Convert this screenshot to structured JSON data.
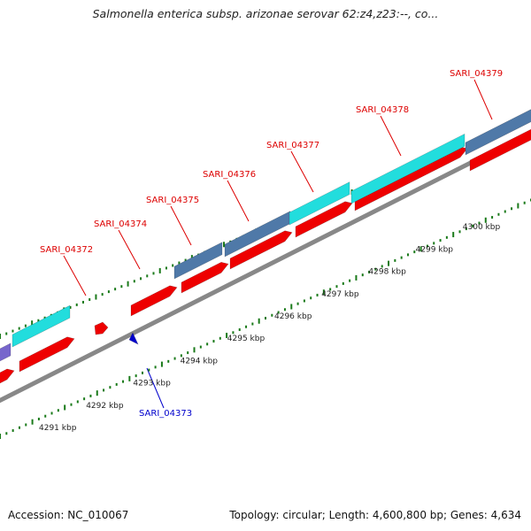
{
  "title": "Salmonella enterica subsp. arizonae serovar 62:z4,z23:--, co...",
  "footer": {
    "accession": "Accession: NC_010067",
    "summary": "Topology: circular; Length: 4,600,800 bp; Genes: 4,634"
  },
  "gene_labels": [
    {
      "text": "SARI_04372",
      "color": "#dd0000"
    },
    {
      "text": "SARI_04374",
      "color": "#dd0000"
    },
    {
      "text": "SARI_04375",
      "color": "#dd0000"
    },
    {
      "text": "SARI_04376",
      "color": "#dd0000"
    },
    {
      "text": "SARI_04377",
      "color": "#dd0000"
    },
    {
      "text": "SARI_04378",
      "color": "#dd0000"
    },
    {
      "text": "SARI_04379",
      "color": "#dd0000"
    },
    {
      "text": "SARI_04373",
      "color": "#0000cc"
    }
  ],
  "kbp_ticks": [
    "4291 kbp",
    "4292 kbp",
    "4293 kbp",
    "4294 kbp",
    "4295 kbp",
    "4296 kbp",
    "4297 kbp",
    "4298 kbp",
    "4299 kbp",
    "4300 kbp"
  ],
  "colors": {
    "cds_forward": "#ee0000",
    "cds_reverse": "#0000cc",
    "blast_cyan": "#22dddd",
    "blast_steel": "#4f79a8",
    "blast_purple": "#7766cc",
    "backbone": "#888888",
    "tick_green": "#1a7a1a"
  }
}
